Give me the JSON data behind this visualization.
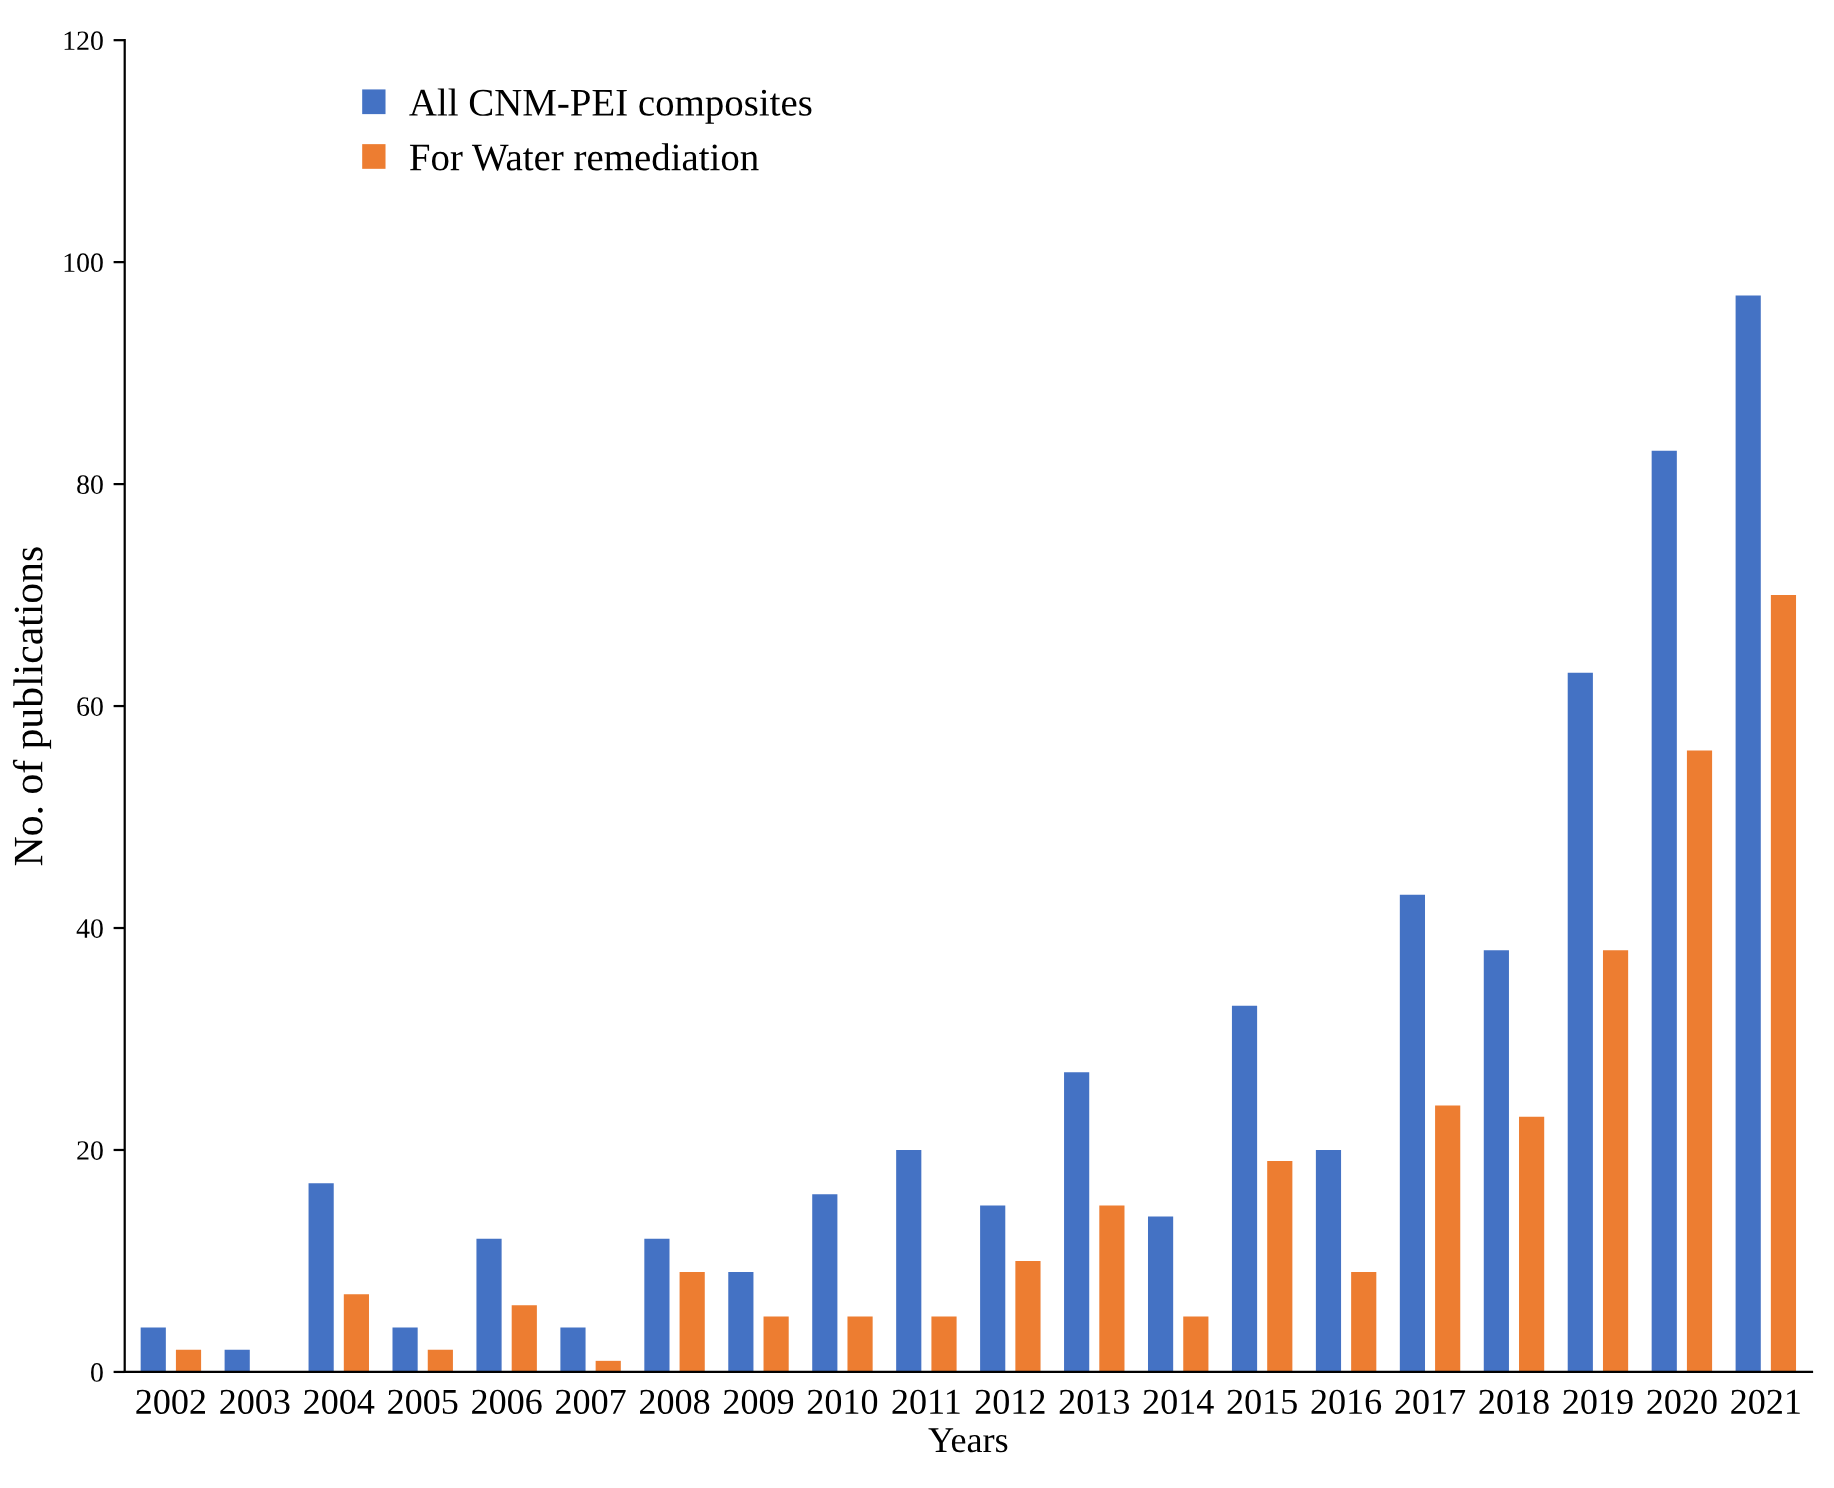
{
  "chart_data": {
    "type": "bar",
    "xlabel": "Years",
    "ylabel": "No. of publications",
    "categories": [
      "2002",
      "2003",
      "2004",
      "2005",
      "2006",
      "2007",
      "2008",
      "2009",
      "2010",
      "2011",
      "2012",
      "2013",
      "2014",
      "2015",
      "2016",
      "2017",
      "2018",
      "2019",
      "2020",
      "2021"
    ],
    "series": [
      {
        "name": "All CNM-PEI composites",
        "color": "#4472c4",
        "values": [
          4,
          2,
          17,
          4,
          12,
          4,
          12,
          9,
          16,
          20,
          15,
          27,
          14,
          33,
          20,
          43,
          38,
          63,
          83,
          97
        ]
      },
      {
        "name": "For Water remediation",
        "color": "#ed7d31",
        "values": [
          2,
          0,
          7,
          2,
          6,
          1,
          9,
          5,
          5,
          5,
          10,
          15,
          5,
          19,
          9,
          24,
          23,
          38,
          56,
          70
        ]
      }
    ],
    "ylim": [
      0,
      120
    ],
    "yticks": [
      0,
      20,
      40,
      60,
      80,
      100,
      120
    ],
    "grid": false,
    "legend": "top left"
  }
}
